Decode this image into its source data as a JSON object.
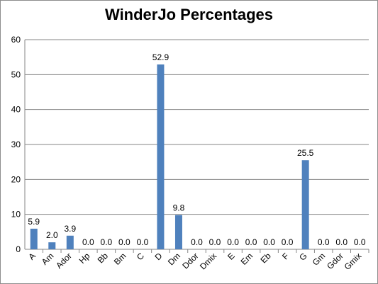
{
  "chart_data": {
    "type": "bar",
    "title": "WinderJo Percentages",
    "xlabel": "",
    "ylabel": "",
    "ylim": [
      0,
      60
    ],
    "yticks": [
      0,
      10,
      20,
      30,
      40,
      50,
      60
    ],
    "grid": true,
    "legend": "none",
    "categories": [
      "A",
      "Am",
      "Ador",
      "Hp",
      "Bb",
      "Bm",
      "C",
      "D",
      "Dm",
      "Ddor",
      "Dmix",
      "E",
      "Em",
      "Eb",
      "F",
      "G",
      "Gm",
      "Gdor",
      "Gmix"
    ],
    "values": [
      5.9,
      2.0,
      3.9,
      0.0,
      0.0,
      0.0,
      0.0,
      52.9,
      9.8,
      0.0,
      0.0,
      0.0,
      0.0,
      0.0,
      0.0,
      25.5,
      0.0,
      0.0,
      0.0
    ],
    "data_labels": [
      "5.9",
      "2.0",
      "3.9",
      "0.0",
      "0.0",
      "0.0",
      "0.0",
      "52.9",
      "9.8",
      "0.0",
      "0.0",
      "0.0",
      "0.0",
      "0.0",
      "0.0",
      "25.5",
      "0.0",
      "0.0",
      "0.0"
    ],
    "colors": {
      "bar": "#4f81bd",
      "grid": "#868686",
      "axis": "#868686",
      "text": "#000000"
    }
  }
}
